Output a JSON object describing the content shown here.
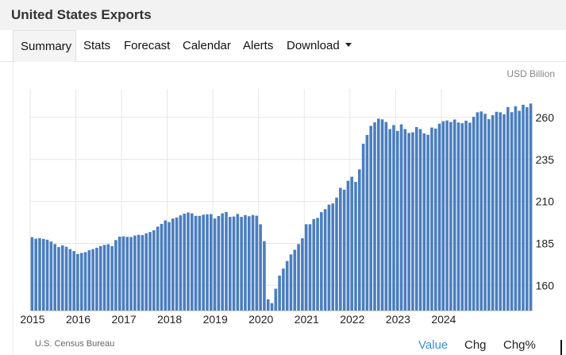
{
  "header": {
    "title": "United States Exports"
  },
  "tabs": [
    {
      "label": "Summary",
      "active": true
    },
    {
      "label": "Stats"
    },
    {
      "label": "Forecast"
    },
    {
      "label": "Calendar"
    },
    {
      "label": "Alerts"
    },
    {
      "label": "Download"
    }
  ],
  "unit_label": "USD Billion",
  "source": "U.S. Census Bureau",
  "footer_buttons": [
    {
      "label": "Value",
      "active": true
    },
    {
      "label": "Chg"
    },
    {
      "label": "Chg%"
    }
  ],
  "colors": {
    "bar": "#4a7ebf",
    "grid": "#e6e6e6",
    "axis_text": "#222222",
    "active_link": "#3b8fd9"
  },
  "chart_data": {
    "type": "bar",
    "title": "",
    "xlabel": "",
    "ylabel": "",
    "ylim": [
      145,
      277
    ],
    "y_ticks": [
      160,
      185,
      210,
      235,
      260
    ],
    "x_ticks": [
      "2015",
      "2016",
      "2017",
      "2018",
      "2019",
      "2020",
      "2021",
      "2022",
      "2023",
      "2024"
    ],
    "grid": true,
    "y_axis_side": "right",
    "series": [
      {
        "values": [
          188.7,
          187.8,
          188.1,
          187.7,
          187.2,
          186.1,
          184.6,
          182.8,
          183.8,
          183.0,
          181.6,
          180.4,
          178.7,
          179.3,
          179.8,
          180.9,
          181.6,
          182.4,
          183.4,
          184.1,
          184.5,
          183.4,
          187.0,
          189.0,
          189.2,
          188.9,
          188.8,
          189.7,
          190.1,
          189.9,
          191.0,
          191.8,
          192.8,
          195.0,
          196.6,
          198.7,
          197.7,
          199.8,
          200.4,
          201.7,
          202.7,
          203.4,
          202.9,
          201.4,
          201.4,
          202.1,
          202.3,
          202.4,
          199.8,
          201.3,
          202.9,
          203.7,
          200.8,
          201.0,
          202.5,
          200.8,
          201.9,
          201.2,
          201.9,
          201.5,
          196.4,
          186.3,
          151.7,
          149.4,
          158.0,
          165.8,
          170.0,
          174.5,
          178.4,
          181.2,
          184.6,
          188.0,
          196.4,
          196.4,
          199.5,
          200.2,
          203.6,
          205.4,
          208.1,
          208.8,
          212.3,
          218.1,
          217.0,
          222.3,
          224.7,
          221.6,
          229.1,
          244.4,
          249.6,
          255.0,
          257.1,
          259.3,
          258.9,
          257.3,
          253.1,
          255.5,
          252.0,
          255.9,
          253.1,
          250.8,
          251.2,
          254.3,
          253.1,
          250.5,
          249.7,
          254.0,
          253.4,
          256.3,
          257.8,
          258.2,
          257.3,
          258.8,
          257.0,
          256.6,
          258.1,
          256.9,
          260.4,
          263.1,
          263.6,
          262.2,
          259.0,
          261.4,
          263.4,
          263.1,
          261.9,
          266.2,
          263.2,
          266.7,
          264.0,
          267.6,
          266.1,
          268.3
        ]
      }
    ]
  }
}
